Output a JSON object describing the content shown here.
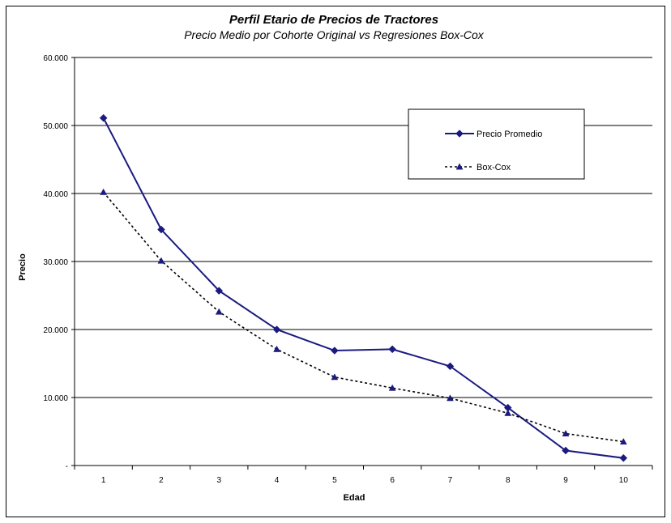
{
  "chart_data": {
    "type": "line",
    "title": "Perfil Etario de Precios de Tractores",
    "subtitle": "Precio Medio por Cohorte Original vs Regresiones Box-Cox",
    "xlabel": "Edad",
    "ylabel": "Precio",
    "categories": [
      "1",
      "2",
      "3",
      "4",
      "5",
      "6",
      "7",
      "8",
      "9",
      "10"
    ],
    "ylim": [
      0,
      60000
    ],
    "yticks": [
      {
        "value": 0,
        "label": "-"
      },
      {
        "value": 10000,
        "label": "10.000"
      },
      {
        "value": 20000,
        "label": "20.000"
      },
      {
        "value": 30000,
        "label": "30.000"
      },
      {
        "value": 40000,
        "label": "40.000"
      },
      {
        "value": 50000,
        "label": "50.000"
      },
      {
        "value": 60000,
        "label": "60.000"
      }
    ],
    "grid": "horizontal",
    "legend_position": "top-right",
    "series": [
      {
        "name": "Precio Promedio",
        "marker": "diamond",
        "line": "solid",
        "color": "#1a1a80",
        "values": [
          51100,
          34700,
          25700,
          20000,
          16900,
          17100,
          14600,
          8500,
          2200,
          1100
        ]
      },
      {
        "name": "Box-Cox",
        "marker": "triangle",
        "line": "dotted",
        "color": "#1a1a80",
        "line_color": "#000000",
        "values": [
          40200,
          30100,
          22600,
          17100,
          13000,
          11400,
          9900,
          7700,
          4700,
          3500
        ]
      }
    ]
  }
}
